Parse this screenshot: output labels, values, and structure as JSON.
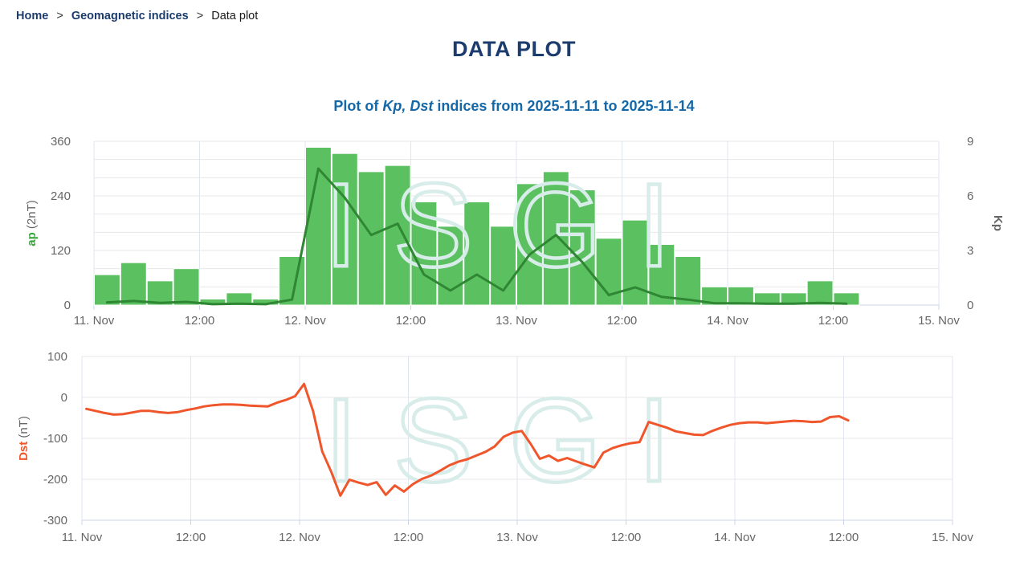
{
  "breadcrumb": {
    "home": "Home",
    "separator": ">",
    "section": "Geomagnetic indices",
    "current": "Data plot"
  },
  "title": "DATA PLOT",
  "subtitle": {
    "prefix": "Plot of ",
    "italic": "Kp, Dst",
    "suffix": " indices from 2025-11-11 to 2025-11-14"
  },
  "watermark_text": "ISGI",
  "colors": {
    "title": "#1d3c6e",
    "subtitle": "#1568a8",
    "link": "#1d3c6e",
    "breadcrumb_text": "#1a1a1a",
    "bar_fill": "#5bc160",
    "ap_line": "#2f8633",
    "ap_label_green": "#3aa33e",
    "kp_label_green": "#4cb150",
    "dst_line": "#f0562b",
    "axis_text": "#666666",
    "grid_h": "#e7e7e7",
    "grid_v": "#dfe6f2",
    "axis_line": "#ccd6eb",
    "watermark": "#d8ece9"
  },
  "chart_data": [
    {
      "type": "bar",
      "name": "kp-ap-chart",
      "x_axis": {
        "start": "2025-11-11 00:00",
        "range_hours": 96,
        "ticks": [
          "11. Nov",
          "12:00",
          "12. Nov",
          "12:00",
          "13. Nov",
          "12:00",
          "14. Nov",
          "12:00",
          "15. Nov"
        ]
      },
      "y_left": {
        "label": "ap",
        "unit": " (2nT)",
        "ticks": [
          0,
          120,
          240,
          360
        ],
        "max": 360
      },
      "y_right": {
        "label": "Kp",
        "ticks": [
          0,
          3,
          6,
          9
        ],
        "max": 9
      },
      "series": [
        {
          "name": "Kp",
          "type": "column",
          "axis": "right",
          "interval_hours": 3,
          "values": [
            1.67,
            2.33,
            1.33,
            2.0,
            0.33,
            0.67,
            0.33,
            2.67,
            8.67,
            8.33,
            7.33,
            7.67,
            5.67,
            4.33,
            5.67,
            4.33,
            6.67,
            7.33,
            6.33,
            3.67,
            4.67,
            3.33,
            2.67,
            1.0,
            1.0,
            0.67,
            0.67,
            1.33,
            0.67
          ]
        },
        {
          "name": "ap",
          "type": "line",
          "axis": "left",
          "interval_hours": 3,
          "values": [
            6,
            9,
            5,
            7,
            2,
            3,
            2,
            12,
            300,
            236,
            154,
            179,
            67,
            32,
            67,
            32,
            111,
            154,
            94,
            22,
            39,
            18,
            12,
            4,
            4,
            3,
            3,
            5,
            3
          ]
        }
      ],
      "grid": true,
      "legend": false
    },
    {
      "type": "line",
      "name": "dst-chart",
      "x_axis": {
        "start": "2025-11-11 00:00",
        "range_hours": 96,
        "ticks": [
          "11. Nov",
          "12:00",
          "12. Nov",
          "12:00",
          "13. Nov",
          "12:00",
          "14. Nov",
          "12:00",
          "15. Nov"
        ]
      },
      "y_axis": {
        "label": "Dst",
        "unit": " (nT)",
        "ticks": [
          100,
          0,
          -100,
          -200,
          -300
        ],
        "min": -300,
        "max": 100
      },
      "series": [
        {
          "name": "Dst",
          "type": "line",
          "interval_hours": 1,
          "values": [
            -28,
            -33,
            -38,
            -42,
            -41,
            -37,
            -33,
            -33,
            -36,
            -38,
            -36,
            -31,
            -27,
            -22,
            -19,
            -17,
            -17,
            -18,
            -20,
            -21,
            -22,
            -13,
            -6,
            3,
            33,
            -34,
            -132,
            -182,
            -240,
            -201,
            -208,
            -214,
            -207,
            -238,
            -215,
            -230,
            -212,
            -199,
            -191,
            -179,
            -166,
            -157,
            -151,
            -142,
            -133,
            -120,
            -96,
            -86,
            -82,
            -114,
            -150,
            -142,
            -155,
            -148,
            -156,
            -164,
            -171,
            -135,
            -124,
            -117,
            -112,
            -109,
            -60,
            -67,
            -74,
            -83,
            -87,
            -91,
            -92,
            -82,
            -74,
            -67,
            -63,
            -61,
            -61,
            -63,
            -61,
            -59,
            -57,
            -58,
            -60,
            -59,
            -48,
            -46,
            -56
          ]
        }
      ],
      "grid": true,
      "legend": false
    }
  ]
}
